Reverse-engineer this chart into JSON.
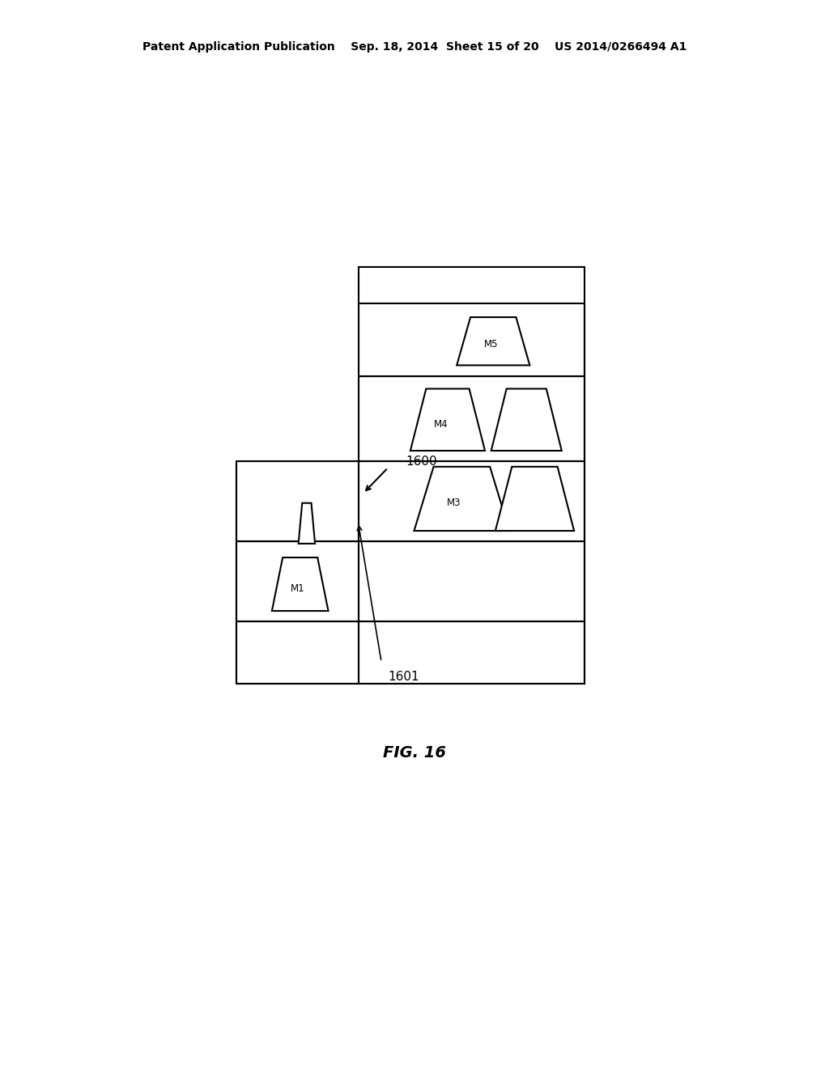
{
  "bg_color": "#ffffff",
  "header_text": "Patent Application Publication    Sep. 18, 2014  Sheet 15 of 20    US 2014/0266494 A1",
  "fig_label": "FIG. 16",
  "label_1600": "1600",
  "label_1601": "1601",
  "line_color": "#000000",
  "line_width": 1.5,
  "font_size_header": 10,
  "font_size_label": 11,
  "font_size_fig": 14
}
